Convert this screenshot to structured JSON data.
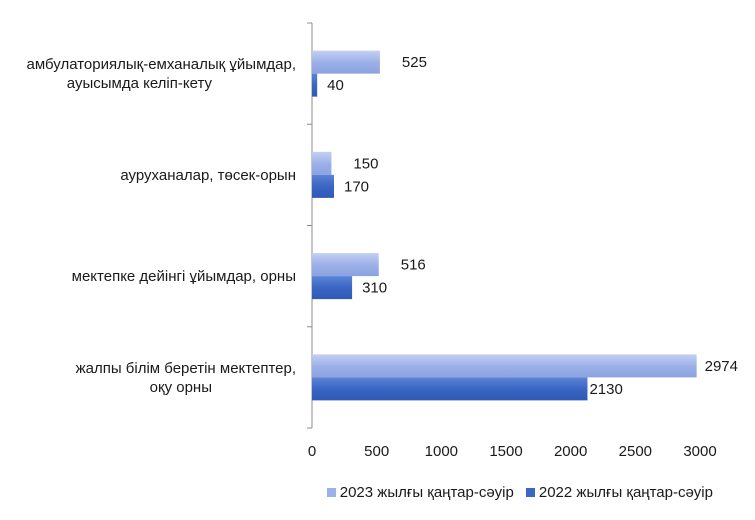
{
  "chart_data": {
    "type": "bar",
    "orientation": "horizontal",
    "categories": [
      [
        "амбулаториялық-емханалық ұйымдар,",
        "ауысымда келіп-кету"
      ],
      [
        "ауруханалар, төсек-орын"
      ],
      [
        "мектепке дейінгі ұйымдар, орны"
      ],
      [
        "жалпы білім беретін мектептер,",
        "оқу орны"
      ]
    ],
    "series": [
      {
        "name": "2023 жылғы қаңтар-сәуір",
        "values": [
          525,
          150,
          516,
          2974
        ],
        "color": "#9db1e8"
      },
      {
        "name": "2022 жылғы қаңтар-сәуір",
        "values": [
          40,
          170,
          310,
          2130
        ],
        "color": "#3a66c4"
      }
    ],
    "xlim": [
      0,
      3000
    ],
    "xticks": [
      "0",
      "500",
      "1000",
      "1500",
      "2000",
      "2500",
      "3000"
    ],
    "grid": false,
    "legend_position": "bottom-right"
  }
}
